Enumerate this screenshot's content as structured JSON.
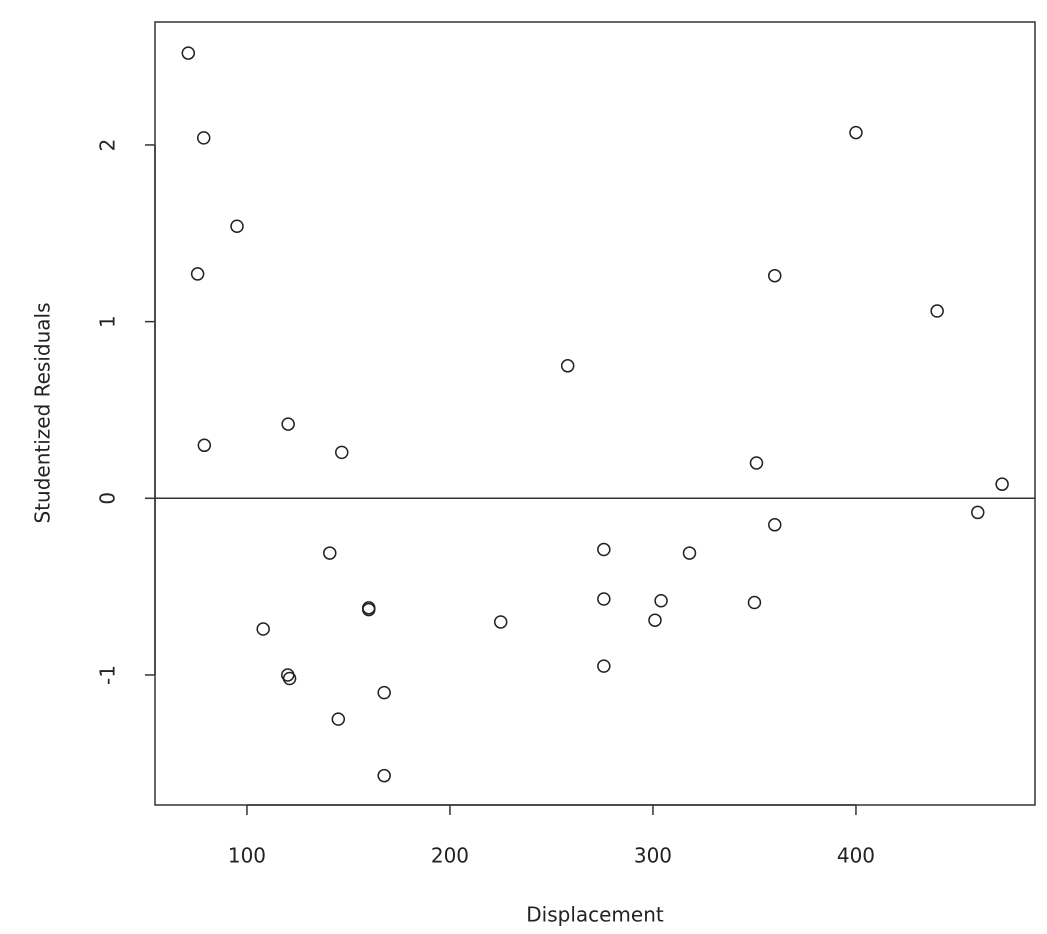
{
  "chart_data": {
    "type": "scatter",
    "x_label": "Displacement",
    "y_label": "Studentized Residuals",
    "x": [
      71.1,
      78.7,
      95.1,
      75.7,
      79,
      120.3,
      146.7,
      140.8,
      160,
      160,
      108,
      120.1,
      121,
      145,
      167.6,
      167.6,
      225,
      258,
      275.8,
      275.8,
      275.8,
      301,
      304,
      318,
      350,
      351,
      360,
      360,
      400,
      440,
      460,
      472
    ],
    "values": [
      2.52,
      2.04,
      1.54,
      1.27,
      0.3,
      0.42,
      0.26,
      -0.31,
      -0.62,
      -0.63,
      -0.74,
      -1.0,
      -1.02,
      -1.25,
      -1.1,
      -1.57,
      -0.7,
      0.75,
      -0.29,
      -0.57,
      -0.95,
      -0.69,
      -0.58,
      -0.31,
      -0.59,
      0.2,
      1.26,
      -0.15,
      2.07,
      1.06,
      -0.08,
      0.08
    ],
    "color": "#222222",
    "xlim": [
      54.7,
      488.2
    ],
    "ylim": [
      -1.736,
      2.696
    ],
    "xticks": [
      100,
      200,
      300,
      400
    ],
    "yticks": [
      -1,
      0,
      1,
      2
    ],
    "reference_line": 0,
    "grid": false
  }
}
